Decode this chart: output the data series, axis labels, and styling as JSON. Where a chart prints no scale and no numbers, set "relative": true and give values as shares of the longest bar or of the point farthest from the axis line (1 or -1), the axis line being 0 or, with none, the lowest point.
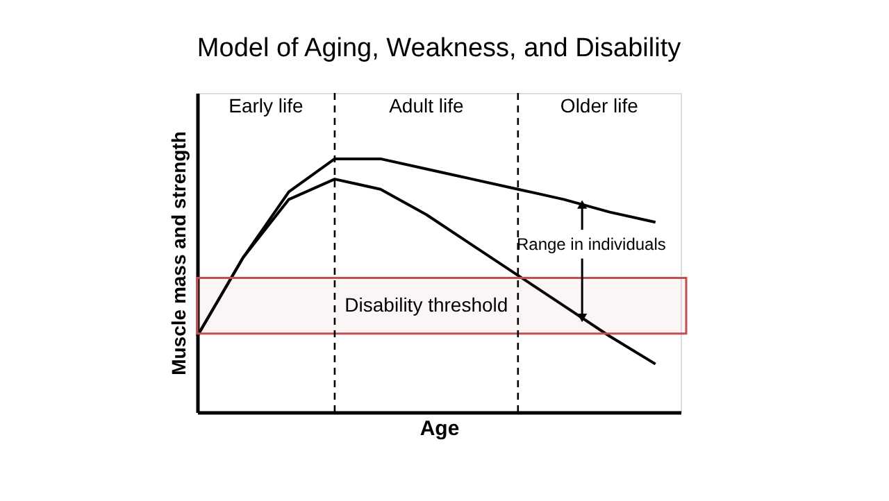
{
  "chart_data": {
    "type": "line",
    "title": "Model of Aging, Weakness, and Disability",
    "xlabel": "Age",
    "ylabel": "Muscle mass and strength",
    "relative": true,
    "categories": [
      null,
      null,
      null,
      null,
      null,
      null,
      null,
      null,
      null,
      null,
      null
    ],
    "tick_labels": false,
    "grid": false,
    "legend": false,
    "marker": "none",
    "line_style": "solid",
    "series": [
      {
        "color": "#000000",
        "values": [
          0.3,
          0.61,
          0.87,
          1.0,
          1.0,
          0.96,
          0.92,
          0.88,
          0.84,
          0.79,
          0.75
        ]
      },
      {
        "color": "#000000",
        "values": [
          0.3,
          0.61,
          0.84,
          0.92,
          0.88,
          0.78,
          0.66,
          0.54,
          0.42,
          0.3,
          0.19
        ]
      }
    ],
    "bands": [
      {
        "axis": "y",
        "from": 0.31,
        "to": 0.53,
        "label": "Disability threshold",
        "color": "#c0504d"
      }
    ],
    "annotations": [
      "Early life",
      "Adult life",
      "Older life",
      "Range in individuals"
    ]
  }
}
